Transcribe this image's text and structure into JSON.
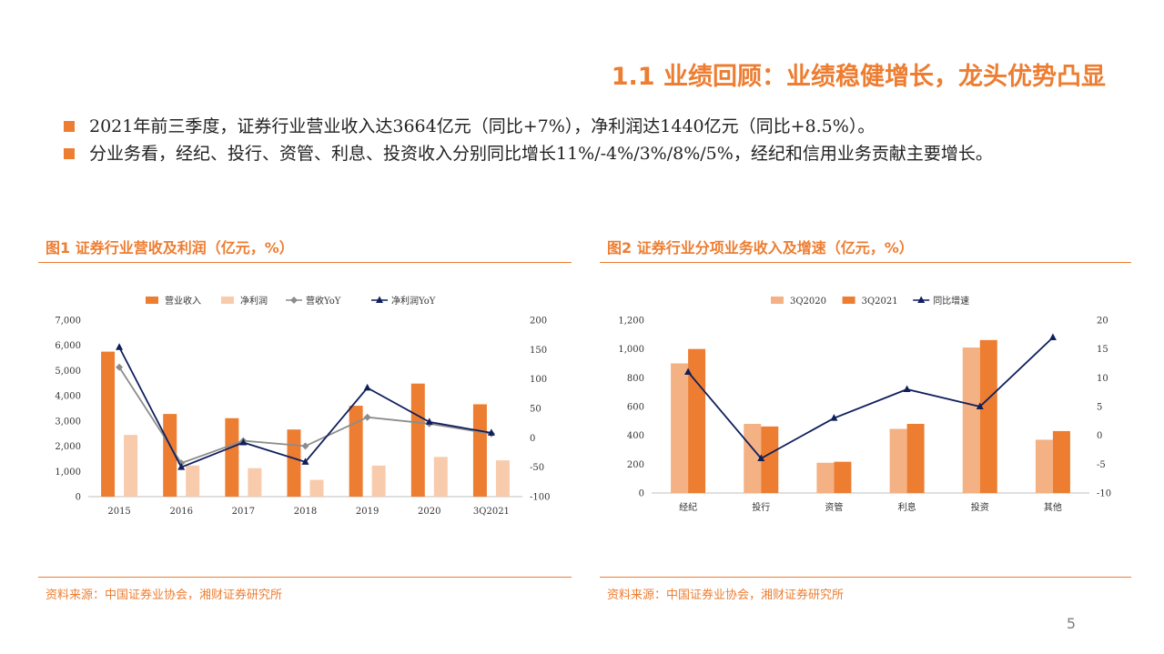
{
  "slide": {
    "title": "1.1 业绩回顾：业绩稳健增长，龙头优势凸显",
    "bullets": [
      "2021年前三季度，证券行业营业收入达3664亿元（同比+7%），净利润达1440亿元（同比+8.5%）。",
      "分业务看，经纪、投行、资管、利息、投资收入分别同比增长11%/-4%/3%/8%/5%，经纪和信用业务贡献主要增长。"
    ],
    "page_number": "5"
  },
  "colors": {
    "accent": "#ED7D31",
    "light_orange": "#F8CBAD",
    "mid_orange": "#F4B183",
    "gray_line": "#8C8C8C",
    "navy_line": "#0F1F5C"
  },
  "icons": {
    "bullet": "square-bullet-icon"
  },
  "charts": {
    "fig1": {
      "title": "图1 证券行业营收及利润（亿元，%）",
      "source": "资料来源：中国证券业协会，湘财证券研究所"
    },
    "fig2": {
      "title": "图2 证券行业分项业务收入及增速（亿元，%）",
      "source": "资料来源：中国证券业协会，湘财证券研究所"
    }
  },
  "chart_data": [
    {
      "type": "bar",
      "title": "图1 证券行业营收及利润（亿元，%）",
      "categories": [
        "2015",
        "2016",
        "2017",
        "2018",
        "2019",
        "2020",
        "3Q2021"
      ],
      "series": [
        {
          "name": "营业收入",
          "kind": "bar",
          "axis": "left",
          "color": "#ED7D31",
          "values": [
            5752,
            3280,
            3113,
            2663,
            3605,
            4485,
            3664
          ]
        },
        {
          "name": "净利润",
          "kind": "bar",
          "axis": "left",
          "color": "#F8CBAD",
          "values": [
            2448,
            1234,
            1130,
            666,
            1231,
            1575,
            1440
          ]
        },
        {
          "name": "营收YoY",
          "kind": "line",
          "axis": "right",
          "color": "#8C8C8C",
          "marker": "diamond",
          "values": [
            120,
            -43,
            -5,
            -14,
            35,
            24,
            7
          ]
        },
        {
          "name": "净利润YoY",
          "kind": "line",
          "axis": "right",
          "color": "#0F1F5C",
          "marker": "triangle",
          "values": [
            154,
            -50,
            -8,
            -41,
            85,
            27,
            8.5
          ]
        }
      ],
      "yaxis_left": {
        "min": 0,
        "max": 7000,
        "step": 1000,
        "ticks": [
          "0",
          "1,000",
          "2,000",
          "3,000",
          "4,000",
          "5,000",
          "6,000",
          "7,000"
        ]
      },
      "yaxis_right": {
        "min": -100,
        "max": 200,
        "step": 50,
        "ticks": [
          "-100",
          "-50",
          "0",
          "50",
          "100",
          "150",
          "200"
        ]
      },
      "legend_position": "top",
      "grid": false
    },
    {
      "type": "bar",
      "title": "图2 证券行业分项业务收入及增速（亿元，%）",
      "categories": [
        "经纪",
        "投行",
        "资管",
        "利息",
        "投资",
        "其他"
      ],
      "series": [
        {
          "name": "3Q2020",
          "kind": "bar",
          "axis": "left",
          "color": "#F4B183",
          "values": [
            900,
            480,
            210,
            445,
            1010,
            370
          ]
        },
        {
          "name": "3Q2021",
          "kind": "bar",
          "axis": "left",
          "color": "#ED7D31",
          "values": [
            1000,
            462,
            217,
            480,
            1062,
            430
          ]
        },
        {
          "name": "同比增速",
          "kind": "line",
          "axis": "right",
          "color": "#0F1F5C",
          "marker": "triangle",
          "values": [
            11,
            -4,
            3,
            8,
            5,
            17
          ]
        }
      ],
      "yaxis_left": {
        "min": 0,
        "max": 1200,
        "step": 200,
        "ticks": [
          "0",
          "200",
          "400",
          "600",
          "800",
          "1,000",
          "1,200"
        ]
      },
      "yaxis_right": {
        "min": -10,
        "max": 20,
        "step": 5,
        "ticks": [
          "-10",
          "-5",
          "0",
          "5",
          "10",
          "15",
          "20"
        ]
      },
      "legend_position": "top",
      "grid": false
    }
  ]
}
